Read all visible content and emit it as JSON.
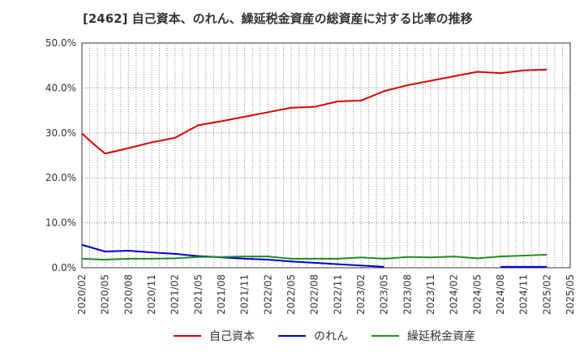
{
  "chart_data": {
    "type": "line",
    "title": "[2462]  自己資本、のれん、繰延税金資産の総資産に対する比率の推移",
    "xlabel": "",
    "ylabel": "",
    "x_ticks": [
      "2020/02",
      "2020/05",
      "2020/08",
      "2020/11",
      "2021/02",
      "2021/05",
      "2021/08",
      "2021/11",
      "2022/02",
      "2022/05",
      "2022/08",
      "2022/11",
      "2023/02",
      "2023/05",
      "2023/08",
      "2023/11",
      "2024/02",
      "2024/05",
      "2024/08",
      "2024/11",
      "2025/02",
      "2025/05"
    ],
    "y_ticks": [
      "0.0%",
      "10.0%",
      "20.0%",
      "30.0%",
      "40.0%",
      "50.0%"
    ],
    "ylim": [
      0,
      50
    ],
    "y_unit": "%",
    "grid": true,
    "legend_position": "bottom",
    "series": [
      {
        "name": "自己資本",
        "color": "#dd0000",
        "points": [
          [
            "2020/02",
            29.9
          ],
          [
            "2020/03",
            28.3
          ],
          [
            "2020/04",
            26.8
          ],
          [
            "2020/05",
            25.4
          ],
          [
            "2020/08",
            26.6
          ],
          [
            "2020/11",
            27.9
          ],
          [
            "2021/02",
            28.9
          ],
          [
            "2021/05",
            31.7
          ],
          [
            "2021/08",
            32.6
          ],
          [
            "2021/11",
            33.6
          ],
          [
            "2022/02",
            34.6
          ],
          [
            "2022/05",
            35.6
          ],
          [
            "2022/08",
            35.8
          ],
          [
            "2022/11",
            37.0
          ],
          [
            "2023/02",
            37.2
          ],
          [
            "2023/05",
            39.3
          ],
          [
            "2023/08",
            40.6
          ],
          [
            "2023/11",
            41.6
          ],
          [
            "2024/02",
            42.6
          ],
          [
            "2024/05",
            43.6
          ],
          [
            "2024/08",
            43.3
          ],
          [
            "2024/11",
            43.9
          ],
          [
            "2025/02",
            44.1
          ]
        ]
      },
      {
        "name": "のれん",
        "color": "#0000cc",
        "segments": [
          [
            [
              "2020/02",
              5.1
            ],
            [
              "2020/05",
              3.6
            ],
            [
              "2020/08",
              3.8
            ],
            [
              "2020/11",
              3.4
            ],
            [
              "2021/02",
              3.1
            ],
            [
              "2021/05",
              2.6
            ],
            [
              "2021/08",
              2.3
            ],
            [
              "2021/11",
              2.0
            ],
            [
              "2022/02",
              1.8
            ],
            [
              "2022/05",
              1.4
            ],
            [
              "2022/08",
              1.1
            ],
            [
              "2022/11",
              0.8
            ],
            [
              "2023/02",
              0.5
            ],
            [
              "2023/05",
              0.2
            ]
          ],
          [
            [
              "2024/08",
              0.2
            ],
            [
              "2024/11",
              0.2
            ],
            [
              "2025/02",
              0.2
            ]
          ]
        ]
      },
      {
        "name": "繰延税金資産",
        "color": "#228b22",
        "points": [
          [
            "2020/02",
            2.0
          ],
          [
            "2020/05",
            1.8
          ],
          [
            "2020/08",
            2.0
          ],
          [
            "2020/11",
            2.0
          ],
          [
            "2021/02",
            2.1
          ],
          [
            "2021/05",
            2.4
          ],
          [
            "2021/08",
            2.4
          ],
          [
            "2021/11",
            2.5
          ],
          [
            "2022/02",
            2.5
          ],
          [
            "2022/05",
            2.0
          ],
          [
            "2022/08",
            2.0
          ],
          [
            "2022/11",
            2.0
          ],
          [
            "2023/02",
            2.3
          ],
          [
            "2023/05",
            2.0
          ],
          [
            "2023/08",
            2.4
          ],
          [
            "2023/11",
            2.3
          ],
          [
            "2024/02",
            2.5
          ],
          [
            "2024/05",
            2.1
          ],
          [
            "2024/08",
            2.5
          ],
          [
            "2024/11",
            2.7
          ],
          [
            "2025/02",
            2.9
          ]
        ]
      }
    ]
  }
}
